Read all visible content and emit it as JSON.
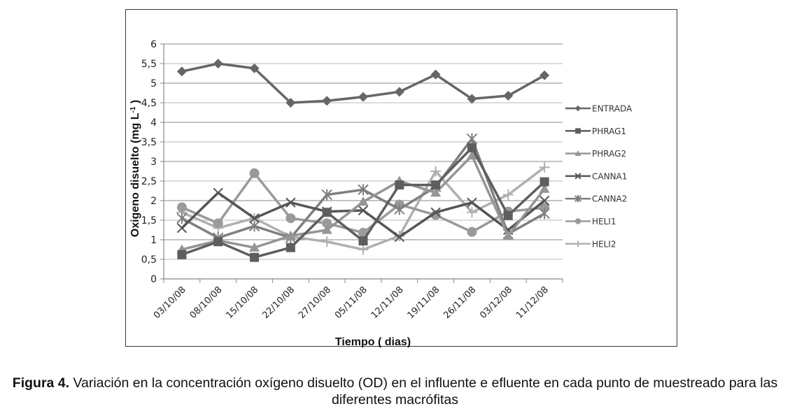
{
  "chart_data": {
    "type": "line",
    "title": "",
    "xlabel": "Tiempo ( dias)",
    "ylabel": "Oxigeno disuelto (mg L",
    "ylabel_sup": "-1",
    "ylabel_end": " )",
    "ylim": [
      0,
      6
    ],
    "yticks": [
      0,
      0.5,
      1,
      1.5,
      2,
      2.5,
      3,
      3.5,
      4,
      4.5,
      5,
      5.5,
      6
    ],
    "ytick_labels": [
      "0",
      "0,5",
      "1",
      "1,5",
      "2",
      "2,5",
      "3",
      "3,5",
      "4",
      "4,5",
      "5",
      "5,5",
      "6"
    ],
    "grid": true,
    "legend_position": "right",
    "categories": [
      "03/10/08",
      "08/10/08",
      "15/10/08",
      "22/10/08",
      "27/10/08",
      "05/11/08",
      "12/11/08",
      "19/11/08",
      "26/11/08",
      "03/12/08",
      "11/12/08"
    ],
    "series": [
      {
        "name": "ENTRADA",
        "marker": "diamond",
        "color": "#666666",
        "values": [
          5.3,
          5.5,
          5.38,
          4.5,
          4.55,
          4.65,
          4.78,
          5.22,
          4.6,
          4.68,
          5.2
        ]
      },
      {
        "name": "PHRAG1",
        "marker": "square",
        "color": "#5e5e5e",
        "values": [
          0.62,
          0.95,
          0.55,
          0.8,
          1.7,
          0.97,
          2.4,
          2.4,
          3.35,
          1.62,
          2.48
        ]
      },
      {
        "name": "PHRAG2",
        "marker": "triangle",
        "color": "#959595",
        "values": [
          0.75,
          0.98,
          0.8,
          1.1,
          1.25,
          1.97,
          2.5,
          2.2,
          3.15,
          1.1,
          2.3
        ]
      },
      {
        "name": "CANNA1",
        "marker": "x",
        "color": "#555555",
        "values": [
          1.3,
          2.2,
          1.55,
          1.95,
          1.72,
          1.75,
          1.07,
          1.7,
          1.95,
          1.25,
          2.0
        ]
      },
      {
        "name": "CANNA2",
        "marker": "star",
        "color": "#7f7f7f",
        "values": [
          1.55,
          1.05,
          1.35,
          1.05,
          2.15,
          2.28,
          1.78,
          2.35,
          3.58,
          1.15,
          1.67
        ]
      },
      {
        "name": "HELI1",
        "marker": "circle",
        "color": "#9a9a9a",
        "values": [
          1.83,
          1.42,
          2.7,
          1.55,
          1.42,
          1.18,
          1.9,
          1.63,
          1.2,
          1.72,
          1.82
        ]
      },
      {
        "name": "HELI2",
        "marker": "plus",
        "color": "#b0b0b0",
        "values": [
          1.7,
          1.3,
          1.55,
          1.08,
          0.95,
          0.75,
          1.1,
          2.75,
          1.7,
          2.15,
          2.85
        ]
      }
    ]
  },
  "caption": {
    "label": "Figura 4.",
    "text": " Variación en la concentración oxígeno disuelto (OD) en el influente e efluente en cada punto de muestreado para las diferentes macrófitas"
  }
}
